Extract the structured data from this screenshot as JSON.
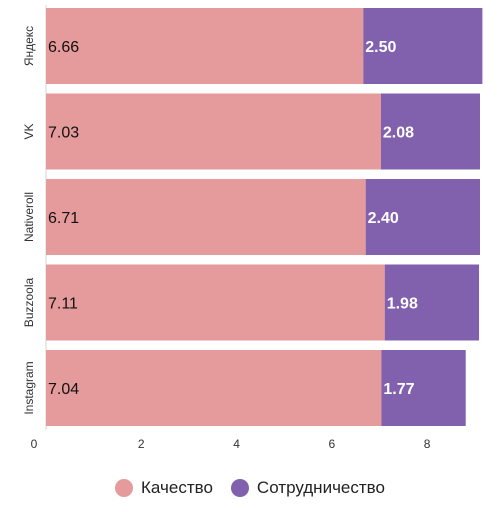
{
  "chart_data": {
    "type": "bar",
    "orientation": "horizontal",
    "stacked": true,
    "categories": [
      "Яндекс",
      "VK",
      "Nativeroll",
      "Buzzoola",
      "Instagram"
    ],
    "series": [
      {
        "name": "Качество",
        "values": [
          6.66,
          7.03,
          6.71,
          7.11,
          7.04
        ],
        "labels": [
          "6.66",
          "7.03",
          "6.71",
          "7.11",
          "7.04"
        ],
        "color": "#e59a9b"
      },
      {
        "name": "Сотрудничество",
        "values": [
          2.5,
          2.08,
          2.4,
          1.98,
          1.77
        ],
        "labels": [
          "2.50",
          "2.08",
          "2.40",
          "1.98",
          "1.77"
        ],
        "color": "#8160ad"
      }
    ],
    "x_ticks": [
      "0",
      "2",
      "4",
      "6",
      "8"
    ],
    "xlim": [
      0,
      9.32
    ],
    "grid": false,
    "legend_position": "bottom"
  }
}
